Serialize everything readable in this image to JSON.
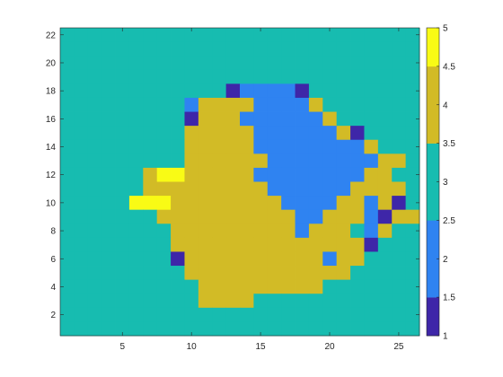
{
  "chart_data": {
    "type": "heatmap",
    "title": "",
    "xlabel": "",
    "ylabel": "",
    "x": [
      1,
      26
    ],
    "y": [
      1,
      22
    ],
    "xlim": [
      0.5,
      26.5
    ],
    "ylim": [
      0.5,
      22.5
    ],
    "clim": [
      1,
      5
    ],
    "xticks": [
      5,
      10,
      15,
      20,
      25
    ],
    "yticks": [
      2,
      4,
      6,
      8,
      10,
      12,
      14,
      16,
      18,
      20,
      22
    ],
    "colorbar_ticks": [
      1,
      1.5,
      2,
      2.5,
      3,
      3.5,
      4,
      4.5,
      5
    ],
    "colorbar_tick_labels": [
      "1",
      "1.5",
      "2",
      "2.5",
      "3",
      "3.5",
      "4",
      "4.5",
      "5"
    ],
    "colormap": "parula",
    "colormap_levels": {
      "1": "#3e26a8",
      "2": "#2f83f1",
      "3": "#17bcb0",
      "4": "#d2bb26",
      "5": "#f9fb15"
    },
    "rows_top_to_bottom": [
      "33333333333333333333333333",
      "33333333333333333333333333",
      "33333333333333333333333333",
      "33333333333333333333333333",
      "33333333333312222133333333",
      "33333333324444222243333333",
      "33333333314442222224333333",
      "33333333344444222222413333",
      "33333333344444222222224333",
      "33333333344444422222222443",
      "33333345544444222222224433",
      "33333344444444422222244443",
      "33333555444444442222442413",
      "33333334444444444224442144",
      "33333333444444444244432433",
      "33333333444444444444441333",
      "33333333144444444442443333",
      "33333333344444444444433333",
      "33333333334444444443333333",
      "33333333334444333333333333",
      "33333333333333333333333333",
      "33333333333333333333333333"
    ]
  }
}
